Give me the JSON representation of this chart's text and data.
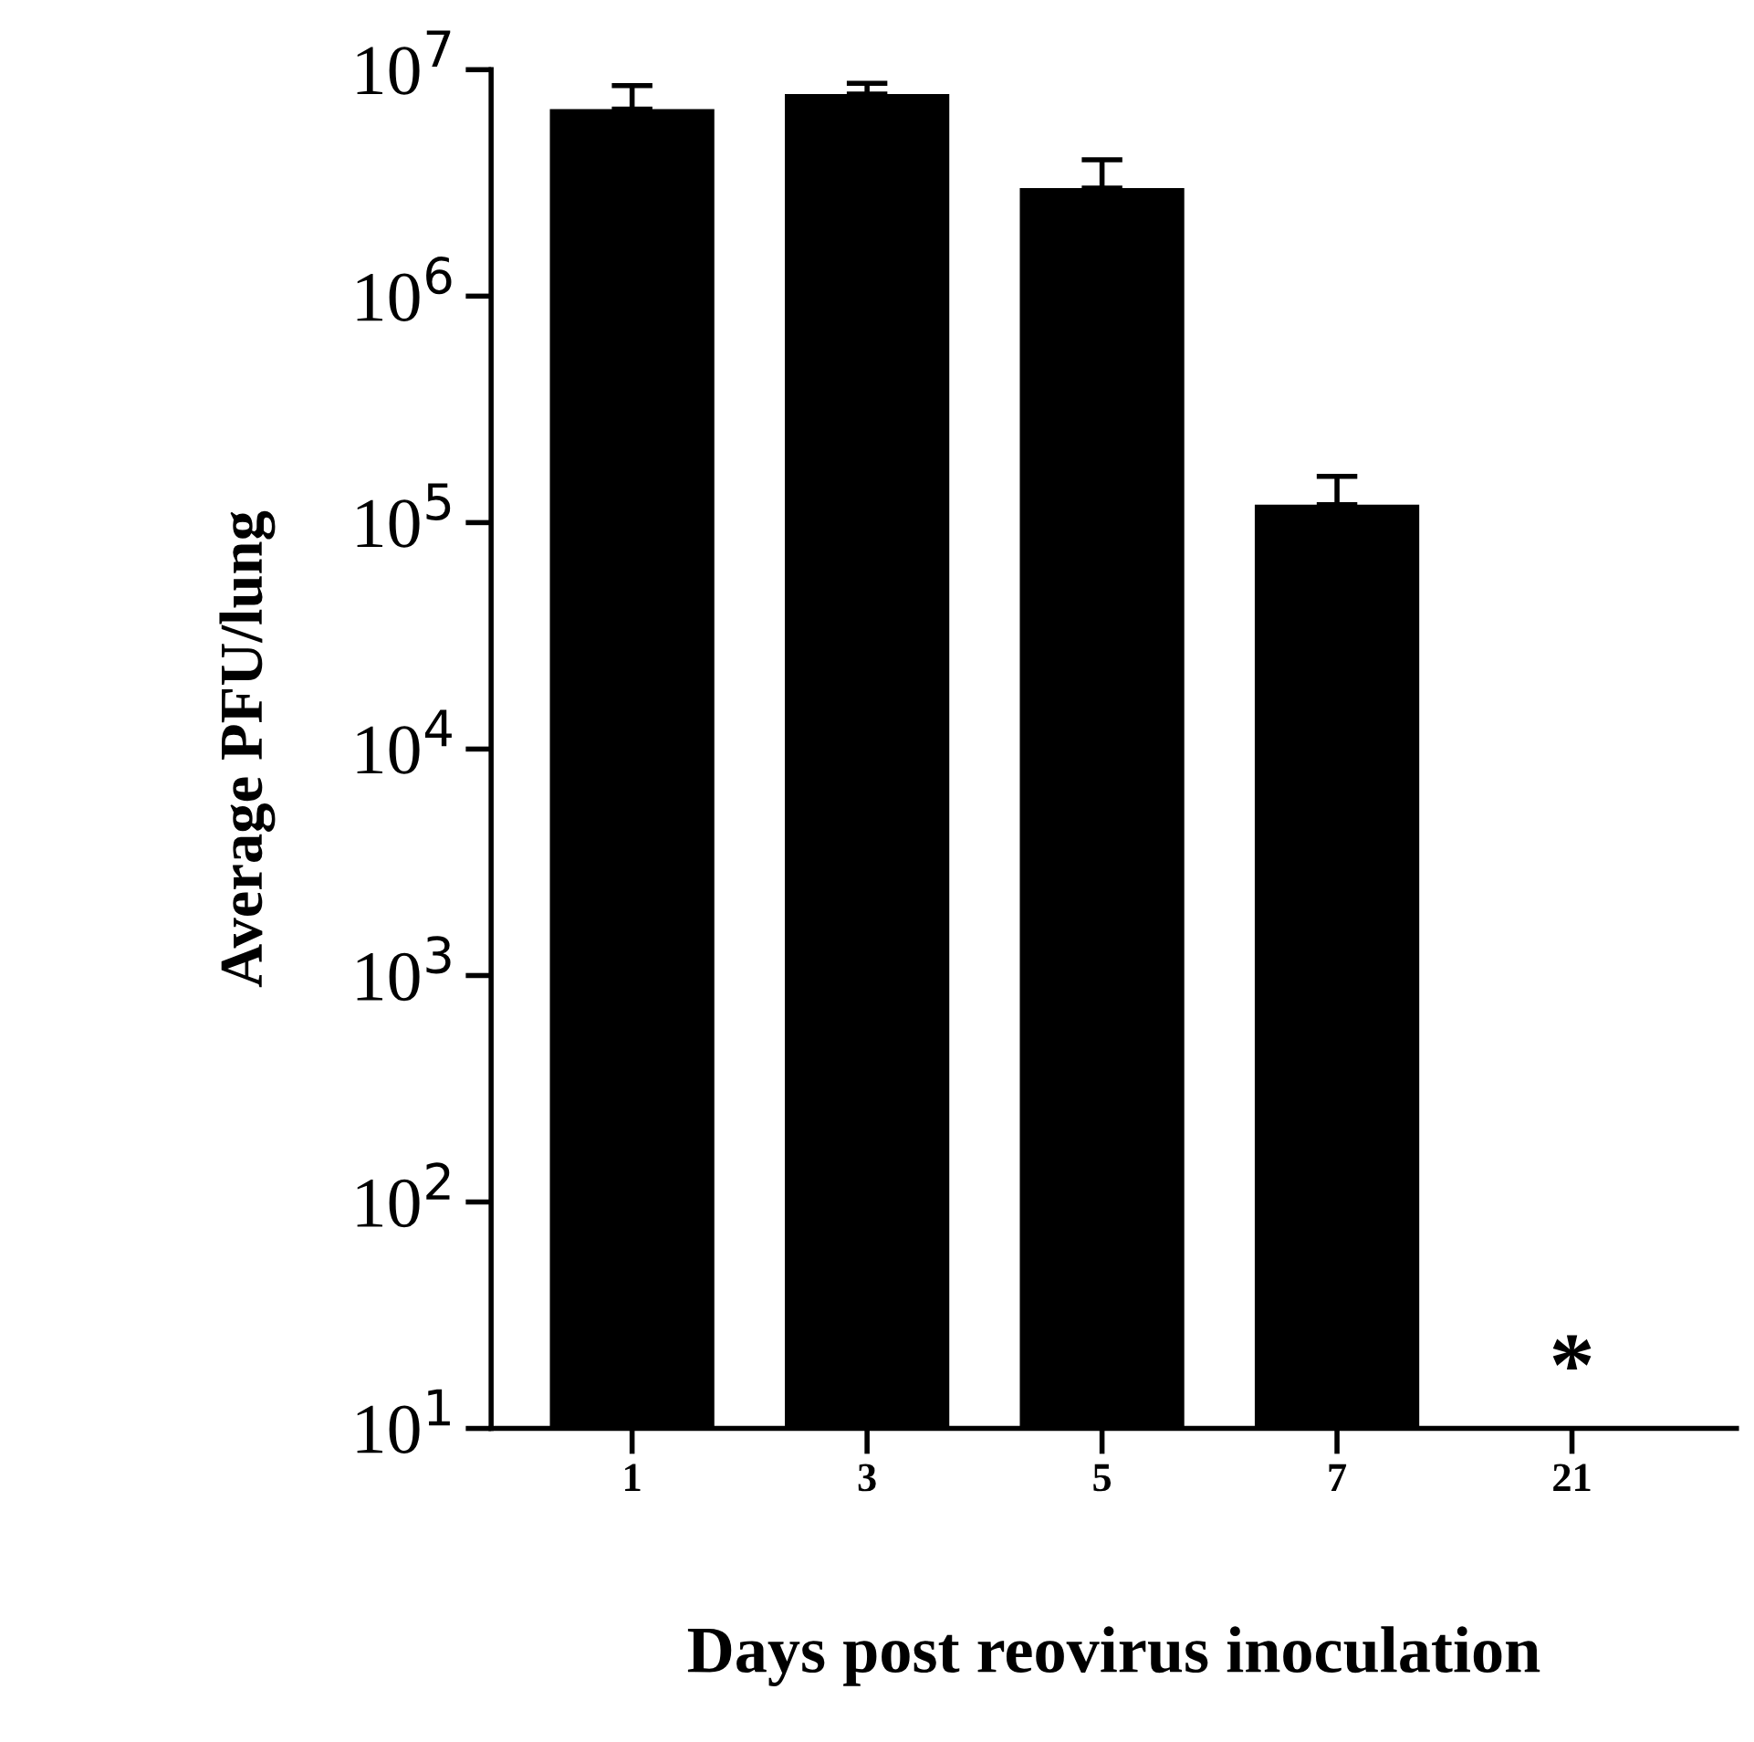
{
  "chart_data": {
    "type": "bar",
    "xlabel": "Days post reovirus inoculation",
    "ylabel": "Average PFU/lung",
    "categories": [
      "1",
      "3",
      "5",
      "7",
      "21"
    ],
    "values": [
      6700000,
      7800000,
      3000000,
      120000,
      null
    ],
    "errors": [
      [
        6700000,
        8500000
      ],
      [
        7800000,
        8700000
      ],
      [
        3000000,
        4000000
      ],
      [
        120000,
        160000
      ],
      null
    ],
    "color": "#000000",
    "log": true,
    "ylim": [
      10,
      10000000
    ],
    "yticks": [
      {
        "value": 10,
        "label": "10$^{1}$"
      },
      {
        "value": 100,
        "label": "10$^{2}$"
      },
      {
        "value": 1000,
        "label": "10$^{3}$"
      },
      {
        "value": 10000,
        "label": "10$^{4}$"
      },
      {
        "value": 100000,
        "label": "10$^{5}$"
      },
      {
        "value": 1000000,
        "label": "10$^{6}$"
      },
      {
        "value": 10000000,
        "label": "10$^{7}$"
      }
    ],
    "annotations": [
      "*"
    ],
    "grid": false,
    "legend": false
  }
}
